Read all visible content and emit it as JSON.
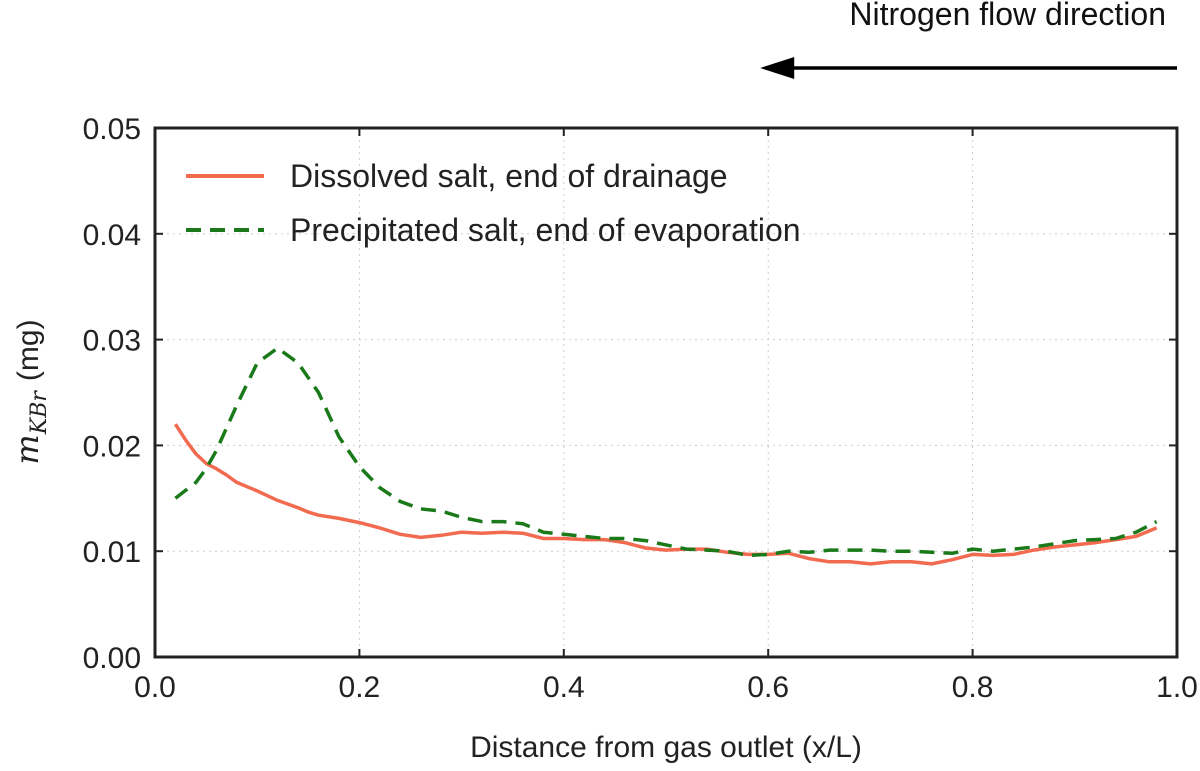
{
  "chart_data": {
    "type": "line",
    "xlabel": "Distance from gas outlet (x/L)",
    "ylabel": {
      "symbol": "m",
      "subscript": "KBr",
      "unit": "(mg)"
    },
    "xlim": [
      0.0,
      1.0
    ],
    "ylim": [
      0.0,
      0.05
    ],
    "x_ticks": [
      "0.0",
      "0.2",
      "0.4",
      "0.6",
      "0.8",
      "1.0"
    ],
    "y_ticks": [
      "0.00",
      "0.01",
      "0.02",
      "0.03",
      "0.04",
      "0.05"
    ],
    "grid": true,
    "legend_position": "top-left",
    "annotation": {
      "text": "Nitrogen flow direction",
      "arrow_direction": "left",
      "arrow_x_range": [
        0.6,
        1.0
      ]
    },
    "series": [
      {
        "name": "Dissolved salt, end of drainage",
        "color": "#f26b50",
        "dash": "solid",
        "x": [
          0.02,
          0.03,
          0.04,
          0.05,
          0.06,
          0.07,
          0.08,
          0.1,
          0.12,
          0.14,
          0.15,
          0.16,
          0.18,
          0.2,
          0.22,
          0.24,
          0.26,
          0.28,
          0.3,
          0.32,
          0.34,
          0.36,
          0.38,
          0.4,
          0.42,
          0.44,
          0.46,
          0.48,
          0.5,
          0.52,
          0.54,
          0.56,
          0.58,
          0.6,
          0.62,
          0.64,
          0.66,
          0.68,
          0.7,
          0.72,
          0.74,
          0.76,
          0.78,
          0.8,
          0.82,
          0.84,
          0.86,
          0.88,
          0.9,
          0.92,
          0.94,
          0.96,
          0.98
        ],
        "values": [
          0.022,
          0.0205,
          0.0192,
          0.0183,
          0.0178,
          0.0172,
          0.0165,
          0.0157,
          0.0148,
          0.0141,
          0.0137,
          0.0134,
          0.0131,
          0.0127,
          0.0122,
          0.0116,
          0.0113,
          0.0115,
          0.0118,
          0.0117,
          0.0118,
          0.0117,
          0.0112,
          0.0112,
          0.0111,
          0.0111,
          0.0108,
          0.0103,
          0.0101,
          0.0102,
          0.0102,
          0.0099,
          0.0097,
          0.0097,
          0.0098,
          0.0093,
          0.009,
          0.009,
          0.0088,
          0.009,
          0.009,
          0.0088,
          0.0092,
          0.0097,
          0.0096,
          0.0097,
          0.0101,
          0.0104,
          0.0106,
          0.0108,
          0.0111,
          0.0114,
          0.0122
        ]
      },
      {
        "name": "Precipitated salt, end of evaporation",
        "color": "#1a7a1a",
        "dash": "dashed",
        "x": [
          0.02,
          0.04,
          0.05,
          0.06,
          0.08,
          0.1,
          0.12,
          0.14,
          0.16,
          0.18,
          0.2,
          0.22,
          0.24,
          0.26,
          0.28,
          0.3,
          0.32,
          0.34,
          0.36,
          0.38,
          0.4,
          0.42,
          0.44,
          0.46,
          0.48,
          0.5,
          0.52,
          0.54,
          0.56,
          0.58,
          0.6,
          0.62,
          0.64,
          0.66,
          0.68,
          0.7,
          0.72,
          0.74,
          0.76,
          0.78,
          0.8,
          0.82,
          0.84,
          0.86,
          0.88,
          0.9,
          0.92,
          0.94,
          0.96,
          0.98
        ],
        "values": [
          0.015,
          0.0165,
          0.0178,
          0.0195,
          0.0238,
          0.0278,
          0.0292,
          0.0278,
          0.025,
          0.0208,
          0.018,
          0.016,
          0.0147,
          0.014,
          0.0138,
          0.0132,
          0.0128,
          0.0128,
          0.0126,
          0.0118,
          0.0116,
          0.0114,
          0.0112,
          0.0112,
          0.011,
          0.0106,
          0.0102,
          0.0101,
          0.01,
          0.0096,
          0.0097,
          0.01,
          0.0099,
          0.0101,
          0.0101,
          0.0101,
          0.01,
          0.01,
          0.0099,
          0.0098,
          0.0102,
          0.01,
          0.0102,
          0.0104,
          0.0107,
          0.011,
          0.0111,
          0.0112,
          0.0118,
          0.0128
        ]
      }
    ]
  }
}
